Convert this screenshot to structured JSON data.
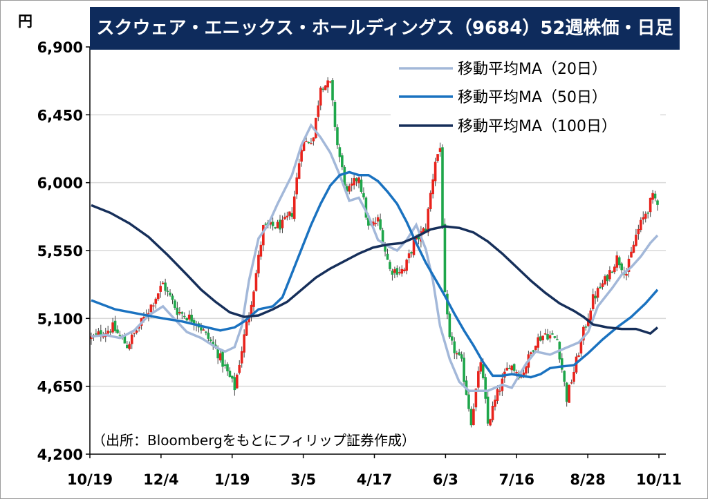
{
  "chart_data": {
    "type": "candlestick",
    "title": "スクウェア・エニックス・ホールディングス（9684）52週株価・日足",
    "unit": "円",
    "source_note": "（出所：Bloombergをもとにフィリップ証券作成）",
    "ylim": [
      4200,
      6900
    ],
    "yticks": [
      {
        "value": 6900,
        "label": "6,900"
      },
      {
        "value": 6450,
        "label": "6,450"
      },
      {
        "value": 6000,
        "label": "6,000"
      },
      {
        "value": 5550,
        "label": "5,550"
      },
      {
        "value": 5100,
        "label": "5,100"
      },
      {
        "value": 4650,
        "label": "4,650"
      },
      {
        "value": 4200,
        "label": "4,200"
      }
    ],
    "xticks": [
      "10/19",
      "12/4",
      "1/19",
      "3/5",
      "4/17",
      "6/3",
      "7/16",
      "8/28",
      "10/11"
    ],
    "grid": true,
    "legend_position": "top-right",
    "colors": {
      "up": "#e8231c",
      "down": "#1ea64a",
      "ma20": "#a3b8d9",
      "ma50": "#1a72c0",
      "ma100": "#162f5a",
      "banner": "#0e2b5c",
      "grid": "#d9d9d9"
    },
    "legend": [
      {
        "key": "ma20",
        "label": "移動平均MA（20日）"
      },
      {
        "key": "ma50",
        "label": "移動平均MA（50日）"
      },
      {
        "key": "ma100",
        "label": "移動平均MA（100日）"
      }
    ],
    "anchors": [
      {
        "x": 0,
        "p": 4970
      },
      {
        "x": 9,
        "p": 5040
      },
      {
        "x": 15,
        "p": 4920
      },
      {
        "x": 22,
        "p": 5100
      },
      {
        "x": 30,
        "p": 5330
      },
      {
        "x": 36,
        "p": 5150
      },
      {
        "x": 44,
        "p": 5080
      },
      {
        "x": 52,
        "p": 4900
      },
      {
        "x": 60,
        "p": 4640
      },
      {
        "x": 64,
        "p": 4980
      },
      {
        "x": 68,
        "p": 5300
      },
      {
        "x": 72,
        "p": 5700
      },
      {
        "x": 80,
        "p": 5720
      },
      {
        "x": 84,
        "p": 5800
      },
      {
        "x": 88,
        "p": 6250
      },
      {
        "x": 93,
        "p": 6300
      },
      {
        "x": 96,
        "p": 6650
      },
      {
        "x": 100,
        "p": 6650
      },
      {
        "x": 103,
        "p": 6250
      },
      {
        "x": 107,
        "p": 5920
      },
      {
        "x": 112,
        "p": 6050
      },
      {
        "x": 116,
        "p": 5700
      },
      {
        "x": 120,
        "p": 5750
      },
      {
        "x": 125,
        "p": 5420
      },
      {
        "x": 131,
        "p": 5420
      },
      {
        "x": 135,
        "p": 5600
      },
      {
        "x": 140,
        "p": 5700
      },
      {
        "x": 144,
        "p": 6150
      },
      {
        "x": 146,
        "p": 6230
      },
      {
        "x": 148,
        "p": 5240
      },
      {
        "x": 150,
        "p": 4950
      },
      {
        "x": 155,
        "p": 4800
      },
      {
        "x": 159,
        "p": 4420
      },
      {
        "x": 163,
        "p": 4820
      },
      {
        "x": 166,
        "p": 4400
      },
      {
        "x": 170,
        "p": 4600
      },
      {
        "x": 175,
        "p": 4800
      },
      {
        "x": 180,
        "p": 4720
      },
      {
        "x": 186,
        "p": 4950
      },
      {
        "x": 190,
        "p": 5000
      },
      {
        "x": 195,
        "p": 4960
      },
      {
        "x": 199,
        "p": 4570
      },
      {
        "x": 202,
        "p": 4750
      },
      {
        "x": 206,
        "p": 5010
      },
      {
        "x": 210,
        "p": 5230
      },
      {
        "x": 215,
        "p": 5350
      },
      {
        "x": 220,
        "p": 5500
      },
      {
        "x": 224,
        "p": 5400
      },
      {
        "x": 228,
        "p": 5650
      },
      {
        "x": 232,
        "p": 5800
      },
      {
        "x": 235,
        "p": 5900
      },
      {
        "x": 237,
        "p": 5880
      }
    ],
    "ma20": [
      {
        "x": 0,
        "p": 4980
      },
      {
        "x": 6,
        "p": 4990
      },
      {
        "x": 12,
        "p": 4970
      },
      {
        "x": 18,
        "p": 5020
      },
      {
        "x": 24,
        "p": 5120
      },
      {
        "x": 30,
        "p": 5180
      },
      {
        "x": 34,
        "p": 5110
      },
      {
        "x": 40,
        "p": 5010
      },
      {
        "x": 46,
        "p": 4970
      },
      {
        "x": 52,
        "p": 4910
      },
      {
        "x": 56,
        "p": 4880
      },
      {
        "x": 60,
        "p": 4910
      },
      {
        "x": 63,
        "p": 5050
      },
      {
        "x": 66,
        "p": 5350
      },
      {
        "x": 70,
        "p": 5630
      },
      {
        "x": 74,
        "p": 5720
      },
      {
        "x": 78,
        "p": 5860
      },
      {
        "x": 84,
        "p": 6050
      },
      {
        "x": 88,
        "p": 6250
      },
      {
        "x": 92,
        "p": 6380
      },
      {
        "x": 96,
        "p": 6300
      },
      {
        "x": 100,
        "p": 6200
      },
      {
        "x": 104,
        "p": 6050
      },
      {
        "x": 108,
        "p": 5880
      },
      {
        "x": 112,
        "p": 5900
      },
      {
        "x": 116,
        "p": 5780
      },
      {
        "x": 120,
        "p": 5620
      },
      {
        "x": 124,
        "p": 5580
      },
      {
        "x": 128,
        "p": 5550
      },
      {
        "x": 132,
        "p": 5620
      },
      {
        "x": 136,
        "p": 5720
      },
      {
        "x": 140,
        "p": 5560
      },
      {
        "x": 143,
        "p": 5350
      },
      {
        "x": 146,
        "p": 5050
      },
      {
        "x": 150,
        "p": 4830
      },
      {
        "x": 154,
        "p": 4680
      },
      {
        "x": 158,
        "p": 4620
      },
      {
        "x": 162,
        "p": 4620
      },
      {
        "x": 166,
        "p": 4620
      },
      {
        "x": 172,
        "p": 4660
      },
      {
        "x": 176,
        "p": 4640
      },
      {
        "x": 182,
        "p": 4800
      },
      {
        "x": 186,
        "p": 4880
      },
      {
        "x": 192,
        "p": 4860
      },
      {
        "x": 198,
        "p": 4900
      },
      {
        "x": 204,
        "p": 4940
      },
      {
        "x": 208,
        "p": 5010
      },
      {
        "x": 212,
        "p": 5180
      },
      {
        "x": 218,
        "p": 5300
      },
      {
        "x": 222,
        "p": 5390
      },
      {
        "x": 226,
        "p": 5440
      },
      {
        "x": 230,
        "p": 5510
      },
      {
        "x": 234,
        "p": 5600
      },
      {
        "x": 237,
        "p": 5650
      }
    ],
    "ma50": [
      {
        "x": 0,
        "p": 5220
      },
      {
        "x": 10,
        "p": 5160
      },
      {
        "x": 20,
        "p": 5130
      },
      {
        "x": 30,
        "p": 5100
      },
      {
        "x": 38,
        "p": 5080
      },
      {
        "x": 46,
        "p": 5050
      },
      {
        "x": 54,
        "p": 5020
      },
      {
        "x": 60,
        "p": 5040
      },
      {
        "x": 64,
        "p": 5080
      },
      {
        "x": 70,
        "p": 5160
      },
      {
        "x": 76,
        "p": 5180
      },
      {
        "x": 80,
        "p": 5240
      },
      {
        "x": 84,
        "p": 5400
      },
      {
        "x": 88,
        "p": 5560
      },
      {
        "x": 92,
        "p": 5720
      },
      {
        "x": 96,
        "p": 5860
      },
      {
        "x": 100,
        "p": 5980
      },
      {
        "x": 104,
        "p": 6050
      },
      {
        "x": 108,
        "p": 6070
      },
      {
        "x": 112,
        "p": 6050
      },
      {
        "x": 116,
        "p": 6050
      },
      {
        "x": 120,
        "p": 6010
      },
      {
        "x": 124,
        "p": 5940
      },
      {
        "x": 128,
        "p": 5860
      },
      {
        "x": 132,
        "p": 5740
      },
      {
        "x": 136,
        "p": 5600
      },
      {
        "x": 140,
        "p": 5470
      },
      {
        "x": 144,
        "p": 5360
      },
      {
        "x": 148,
        "p": 5250
      },
      {
        "x": 152,
        "p": 5130
      },
      {
        "x": 156,
        "p": 5020
      },
      {
        "x": 160,
        "p": 4920
      },
      {
        "x": 164,
        "p": 4810
      },
      {
        "x": 168,
        "p": 4720
      },
      {
        "x": 172,
        "p": 4720
      },
      {
        "x": 176,
        "p": 4730
      },
      {
        "x": 180,
        "p": 4720
      },
      {
        "x": 184,
        "p": 4710
      },
      {
        "x": 188,
        "p": 4730
      },
      {
        "x": 192,
        "p": 4770
      },
      {
        "x": 196,
        "p": 4780
      },
      {
        "x": 202,
        "p": 4790
      },
      {
        "x": 208,
        "p": 4870
      },
      {
        "x": 214,
        "p": 4960
      },
      {
        "x": 220,
        "p": 5040
      },
      {
        "x": 226,
        "p": 5110
      },
      {
        "x": 232,
        "p": 5200
      },
      {
        "x": 237,
        "p": 5290
      }
    ],
    "ma100": [
      {
        "x": 0,
        "p": 5850
      },
      {
        "x": 8,
        "p": 5800
      },
      {
        "x": 16,
        "p": 5730
      },
      {
        "x": 24,
        "p": 5640
      },
      {
        "x": 32,
        "p": 5520
      },
      {
        "x": 40,
        "p": 5390
      },
      {
        "x": 46,
        "p": 5290
      },
      {
        "x": 52,
        "p": 5210
      },
      {
        "x": 58,
        "p": 5140
      },
      {
        "x": 64,
        "p": 5110
      },
      {
        "x": 70,
        "p": 5120
      },
      {
        "x": 76,
        "p": 5160
      },
      {
        "x": 82,
        "p": 5210
      },
      {
        "x": 88,
        "p": 5290
      },
      {
        "x": 94,
        "p": 5370
      },
      {
        "x": 100,
        "p": 5430
      },
      {
        "x": 106,
        "p": 5480
      },
      {
        "x": 112,
        "p": 5530
      },
      {
        "x": 118,
        "p": 5570
      },
      {
        "x": 124,
        "p": 5590
      },
      {
        "x": 130,
        "p": 5600
      },
      {
        "x": 136,
        "p": 5640
      },
      {
        "x": 142,
        "p": 5690
      },
      {
        "x": 148,
        "p": 5710
      },
      {
        "x": 154,
        "p": 5700
      },
      {
        "x": 160,
        "p": 5670
      },
      {
        "x": 166,
        "p": 5610
      },
      {
        "x": 172,
        "p": 5530
      },
      {
        "x": 178,
        "p": 5440
      },
      {
        "x": 184,
        "p": 5350
      },
      {
        "x": 190,
        "p": 5270
      },
      {
        "x": 196,
        "p": 5200
      },
      {
        "x": 202,
        "p": 5150
      },
      {
        "x": 206,
        "p": 5110
      },
      {
        "x": 210,
        "p": 5060
      },
      {
        "x": 216,
        "p": 5040
      },
      {
        "x": 222,
        "p": 5030
      },
      {
        "x": 228,
        "p": 5030
      },
      {
        "x": 232,
        "p": 5010
      },
      {
        "x": 234,
        "p": 5000
      },
      {
        "x": 237,
        "p": 5040
      }
    ],
    "n_days": 238
  }
}
